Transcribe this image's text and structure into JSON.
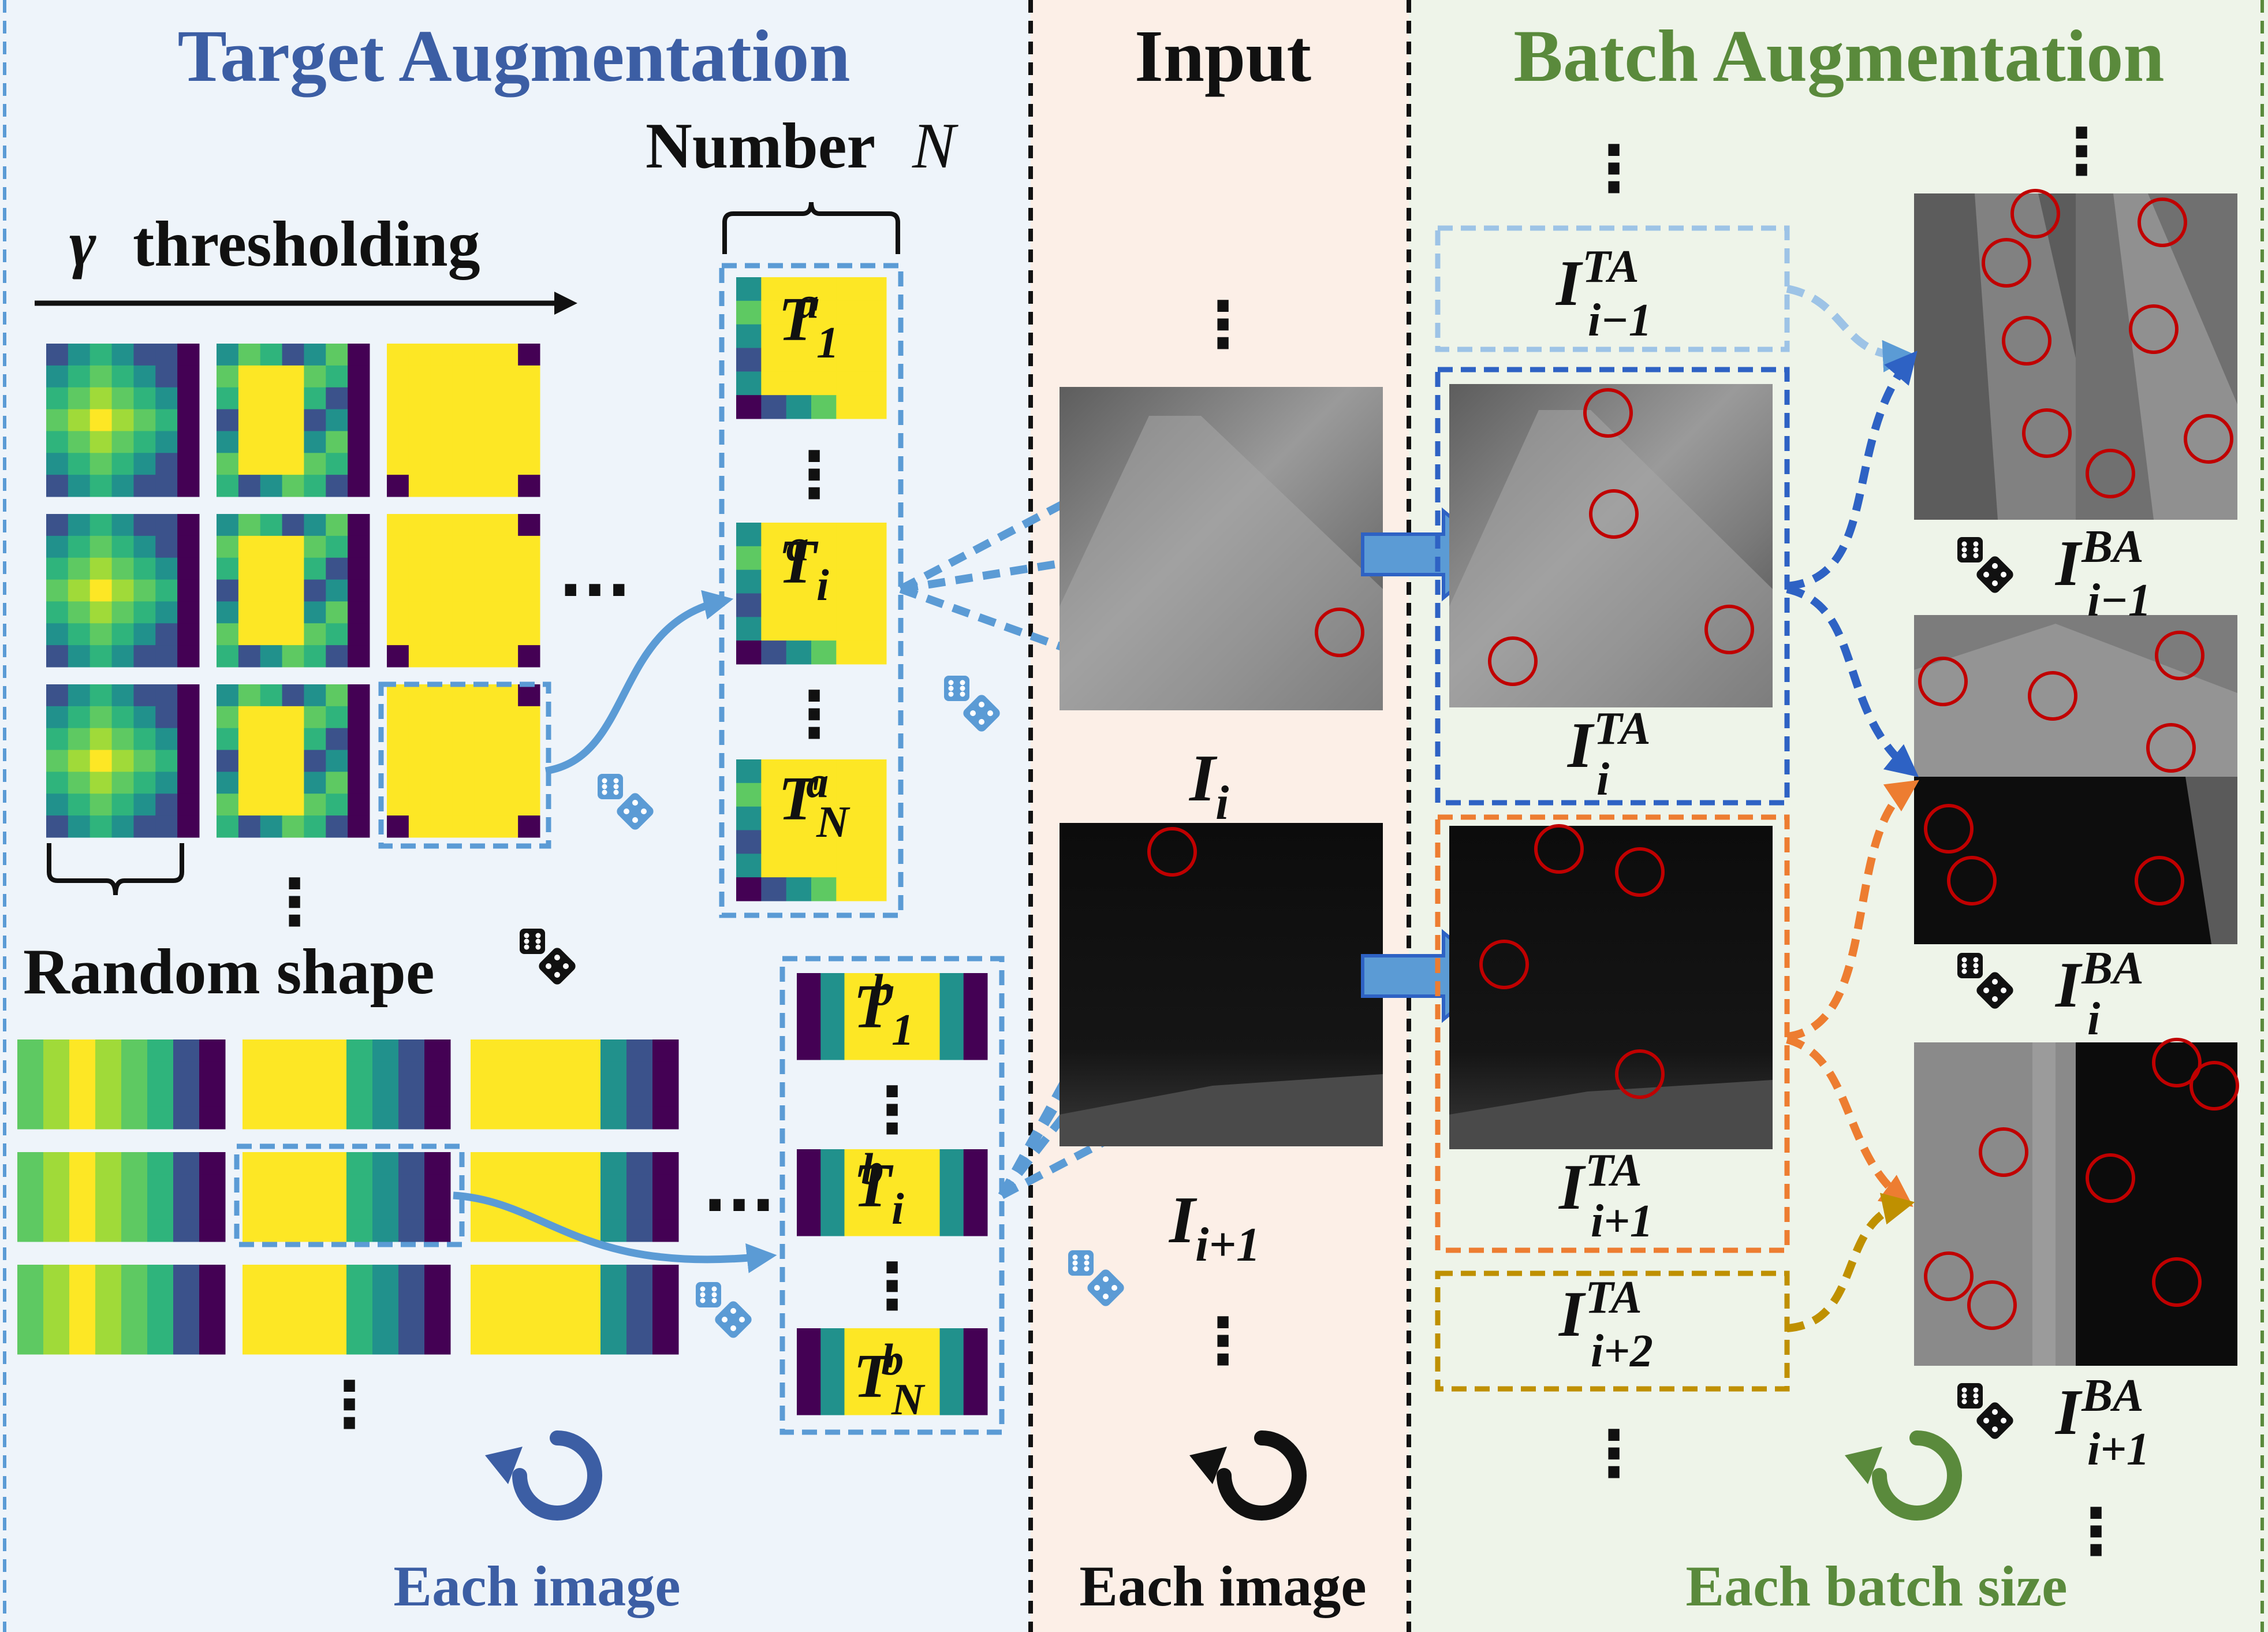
{
  "colors": {
    "target_panel_bg": "#eef4fa",
    "input_panel_bg": "#fcefe7",
    "batch_panel_bg": "#eef4e9",
    "target_title": "#3c5ea4",
    "batch_title": "#5a8a3c",
    "dash_light_blue": "#5b9bd5",
    "dash_dark_blue": "#2e62c4",
    "dash_orange": "#ed7d31",
    "dash_gold": "#bf9000",
    "circle_red": "#c00000",
    "viridis_yellow": "#fde725",
    "viridis_green": "#5ec962",
    "viridis_teal": "#21918c",
    "viridis_blue": "#3b528b",
    "viridis_purple": "#440154"
  },
  "panels": {
    "target": {
      "title": "Target Augmentation",
      "footer": "Each image"
    },
    "input": {
      "title": "Input",
      "footer": "Each image"
    },
    "batch": {
      "title": "Batch Augmentation",
      "footer": "Each batch size"
    }
  },
  "labels": {
    "gamma_symbol": "γ",
    "gamma_rest": "thresholding",
    "number_text": "Number",
    "number_var": "N",
    "random_shape": "Random shape",
    "ellipsis_h": "···",
    "ellipsis_v": "⋮"
  },
  "target_tags": {
    "a1": {
      "base": "T",
      "sup": "a",
      "sub": "1"
    },
    "ai": {
      "base": "T",
      "sup": "a",
      "sub": "i"
    },
    "aN": {
      "base": "T",
      "sup": "a",
      "sub": "N"
    },
    "b1": {
      "base": "T",
      "sup": "b",
      "sub": "1"
    },
    "bi": {
      "base": "T",
      "sup": "b",
      "sub": "i"
    },
    "bN": {
      "base": "T",
      "sup": "b",
      "sub": "N"
    }
  },
  "input_tags": {
    "i": {
      "base": "I",
      "sub": "i"
    },
    "i1": {
      "base": "I",
      "sub": "i+1"
    }
  },
  "ta_tags": {
    "im1": {
      "base": "I",
      "sup": "TA",
      "sub": "i−1"
    },
    "i": {
      "base": "I",
      "sup": "TA",
      "sub": "i"
    },
    "ip1": {
      "base": "I",
      "sup": "TA",
      "sub": "i+1"
    },
    "ip2": {
      "base": "I",
      "sup": "TA",
      "sub": "i+2"
    }
  },
  "ba_tags": {
    "im1": {
      "base": "I",
      "sup": "BA",
      "sub": "i−1"
    },
    "i": {
      "base": "I",
      "sup": "BA",
      "sub": "i"
    },
    "ip1": {
      "base": "I",
      "sup": "BA",
      "sub": "i+1"
    }
  },
  "icons": {
    "dice": "dice-icon",
    "cycle": "cycle-arrow-icon",
    "step_arrow": "block-arrow-icon"
  }
}
